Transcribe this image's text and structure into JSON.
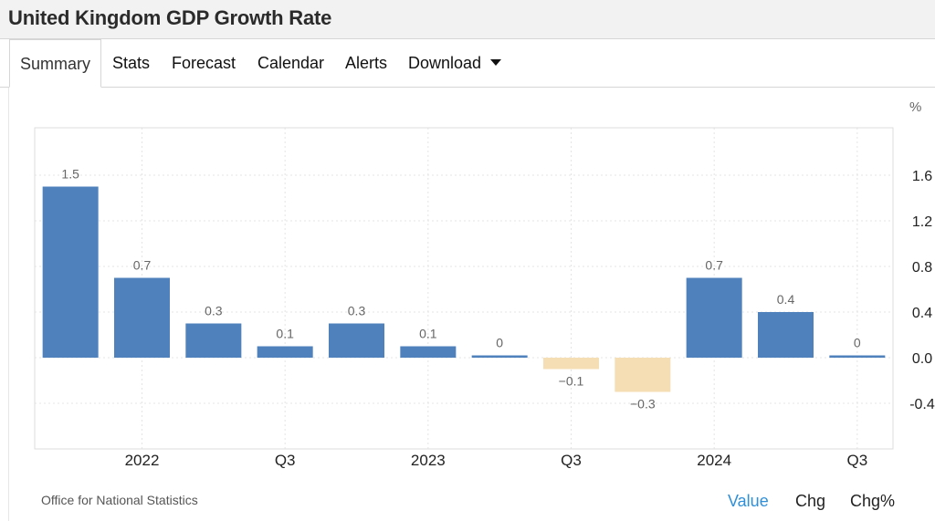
{
  "page": {
    "title": "United Kingdom GDP Growth Rate"
  },
  "tabs": [
    {
      "label": "Summary",
      "active": true
    },
    {
      "label": "Stats"
    },
    {
      "label": "Forecast"
    },
    {
      "label": "Calendar"
    },
    {
      "label": "Alerts"
    },
    {
      "label": "Download",
      "icon": "caret-down-icon"
    }
  ],
  "chart_data": {
    "type": "bar",
    "unit": "%",
    "values": [
      1.5,
      0.7,
      0.3,
      0.1,
      0.3,
      0.1,
      0.02,
      -0.1,
      -0.3,
      0.7,
      0.4,
      0.02
    ],
    "labels": [
      "1.5",
      "0.7",
      "0.3",
      "0.1",
      "0.3",
      "0.1",
      "0",
      "−0.1",
      "−0.3",
      "0.7",
      "0.4",
      "0"
    ],
    "x_ticks": [
      "2022",
      "Q3",
      "2023",
      "Q3",
      "2024",
      "Q3"
    ],
    "y_ticks": [
      1.6,
      1.2,
      0.8,
      0.4,
      0.0,
      -0.4
    ],
    "y_tick_labels": [
      "1.6",
      "1.2",
      "0.8",
      "0.4",
      "0.0",
      "-0.4"
    ],
    "ylim": [
      -0.8,
      2.0
    ],
    "grid": true,
    "colors": {
      "positive": "#4f81bd",
      "negative": "#f5deb3",
      "value_label": "#666666"
    }
  },
  "footer": {
    "source": "Office for National Statistics",
    "modes": [
      {
        "label": "Value",
        "active": true,
        "color": "#2f8fd8"
      },
      {
        "label": "Chg",
        "color": "#222222"
      },
      {
        "label": "Chg%",
        "color": "#222222"
      }
    ]
  }
}
